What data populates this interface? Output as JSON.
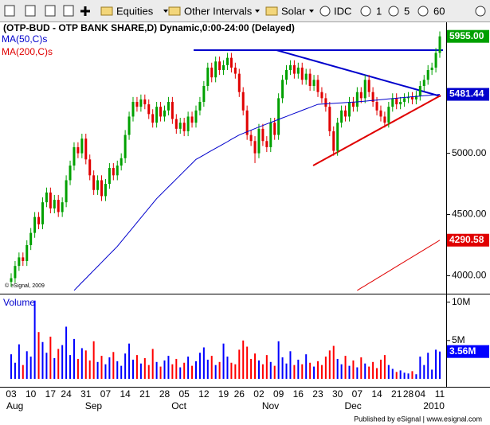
{
  "toolbar": {
    "items": [
      "Equities",
      "Other Intervals",
      "Solar",
      "IDC",
      "1",
      "5",
      "60"
    ]
  },
  "chart_data": [
    {
      "type": "candlestick",
      "title": "(OTP-BUD - OTP BANK SHARE,D) Dynamic,0:00-24:00 (Delayed)",
      "watermark": "© eSignal, 2009",
      "categories": [
        "03",
        null,
        null,
        null,
        null,
        "10",
        null,
        null,
        null,
        null,
        "17",
        null,
        null,
        null,
        "24",
        null,
        null,
        null,
        null,
        "31",
        null,
        null,
        null,
        null,
        "07",
        null,
        null,
        null,
        null,
        "14",
        null,
        null,
        null,
        null,
        "21",
        null,
        null,
        null,
        null,
        "28",
        null,
        null,
        null,
        null,
        "05",
        null,
        null,
        null,
        null,
        "12",
        null,
        null,
        null,
        null,
        "19",
        null,
        null,
        null,
        "26",
        null,
        null,
        null,
        null,
        "02",
        null,
        null,
        null,
        null,
        "09",
        null,
        null,
        null,
        null,
        "16",
        null,
        null,
        null,
        null,
        "23",
        null,
        null,
        null,
        null,
        "30",
        null,
        null,
        null,
        null,
        "07",
        null,
        null,
        null,
        null,
        "14",
        null,
        null,
        null,
        null,
        "21",
        null,
        null,
        "28",
        null,
        null,
        "04",
        null,
        null,
        null,
        null,
        "11"
      ],
      "category_groups": [
        "Aug",
        null,
        null,
        null,
        null,
        null,
        null,
        null,
        null,
        null,
        null,
        null,
        null,
        null,
        null,
        null,
        null,
        null,
        null,
        null,
        "Sep",
        null,
        null,
        null,
        null,
        null,
        null,
        null,
        null,
        null,
        null,
        null,
        null,
        null,
        null,
        null,
        null,
        null,
        null,
        null,
        null,
        null,
        "Oct",
        null,
        null,
        null,
        null,
        null,
        null,
        null,
        null,
        null,
        null,
        null,
        null,
        null,
        null,
        null,
        null,
        null,
        null,
        null,
        null,
        null,
        null,
        "Nov",
        null,
        null,
        null,
        null,
        null,
        null,
        null,
        null,
        null,
        null,
        null,
        null,
        null,
        null,
        null,
        null,
        null,
        null,
        null,
        null,
        "Dec",
        null,
        null,
        null,
        null,
        null,
        null,
        null,
        null,
        null,
        null,
        null,
        null,
        null,
        null,
        null,
        null,
        null,
        null,
        null,
        "2010",
        null,
        null,
        null,
        null,
        null
      ],
      "open": [
        3950,
        3980,
        4080,
        4150,
        4120,
        4250,
        4350,
        4480,
        4420,
        4600,
        4680,
        4550,
        4620,
        4520,
        4600,
        4780,
        4900,
        5050,
        5000,
        5120,
        4950,
        4820,
        4700,
        4780,
        4650,
        4750,
        4880,
        4820,
        4900,
        4960,
        5150,
        5300,
        5420,
        5380,
        5440,
        5400,
        5320,
        5250,
        5380,
        5300,
        5350,
        5420,
        5280,
        5200,
        5250,
        5180,
        5300,
        5250,
        5350,
        5420,
        5550,
        5700,
        5620,
        5750,
        5680,
        5720,
        5780,
        5700,
        5650,
        5500,
        5350,
        5150,
        5100,
        5000,
        5200,
        5100,
        5050,
        5250,
        5150,
        5450,
        5600,
        5680,
        5720,
        5650,
        5700,
        5600,
        5650,
        5550,
        5600,
        5500,
        5450,
        5380,
        5180,
        5020,
        5250,
        5350,
        5300,
        5420,
        5380,
        5500,
        5450,
        5600,
        5500,
        5420,
        5350,
        5300,
        5250,
        5380,
        5450,
        5400,
        5420,
        5450,
        5460,
        5440,
        5470,
        5550,
        5600,
        5680,
        5700,
        5820
      ],
      "high": [
        4020,
        4120,
        4190,
        4190,
        4290,
        4390,
        4520,
        4520,
        4640,
        4720,
        4720,
        4660,
        4660,
        4640,
        4820,
        4940,
        5090,
        5090,
        5160,
        5160,
        4990,
        4860,
        4820,
        4820,
        4790,
        4920,
        4920,
        4940,
        5000,
        5190,
        5340,
        5460,
        5460,
        5480,
        5480,
        5440,
        5360,
        5420,
        5420,
        5390,
        5460,
        5460,
        5320,
        5290,
        5290,
        5340,
        5340,
        5390,
        5460,
        5590,
        5740,
        5740,
        5790,
        5790,
        5760,
        5820,
        5820,
        5740,
        5690,
        5540,
        5390,
        5190,
        5140,
        5240,
        5240,
        5140,
        5290,
        5290,
        5490,
        5640,
        5720,
        5760,
        5760,
        5740,
        5740,
        5690,
        5690,
        5640,
        5640,
        5540,
        5490,
        5420,
        5220,
        5290,
        5390,
        5390,
        5460,
        5460,
        5540,
        5540,
        5640,
        5640,
        5540,
        5460,
        5390,
        5340,
        5420,
        5490,
        5490,
        5460,
        5490,
        5500,
        5500,
        5510,
        5590,
        5640,
        5720,
        5740,
        5860,
        5995
      ],
      "low": [
        3910,
        3940,
        4040,
        4080,
        4080,
        4210,
        4310,
        4380,
        4380,
        4560,
        4510,
        4510,
        4480,
        4480,
        4560,
        4740,
        4860,
        4960,
        4960,
        4910,
        4780,
        4660,
        4660,
        4610,
        4610,
        4710,
        4780,
        4780,
        4860,
        4920,
        5110,
        5260,
        5340,
        5340,
        5360,
        5280,
        5210,
        5210,
        5260,
        5260,
        5310,
        5240,
        5160,
        5160,
        5140,
        5140,
        5210,
        5210,
        5310,
        5380,
        5510,
        5580,
        5580,
        5640,
        5640,
        5680,
        5660,
        5610,
        5460,
        5310,
        5110,
        5060,
        4920,
        4960,
        5060,
        5010,
        5010,
        5110,
        5110,
        5410,
        5560,
        5640,
        5610,
        5610,
        5560,
        5560,
        5510,
        5510,
        5460,
        5410,
        5340,
        5140,
        4980,
        4980,
        5210,
        5260,
        5260,
        5340,
        5340,
        5410,
        5410,
        5460,
        5380,
        5310,
        5260,
        5210,
        5210,
        5340,
        5360,
        5360,
        5380,
        5410,
        5400,
        5400,
        5430,
        5510,
        5560,
        5640,
        5660,
        5780
      ],
      "close": [
        3980,
        4080,
        4150,
        4120,
        4250,
        4350,
        4480,
        4420,
        4600,
        4680,
        4550,
        4620,
        4520,
        4600,
        4780,
        4900,
        5050,
        5000,
        5120,
        4950,
        4820,
        4700,
        4780,
        4650,
        4750,
        4880,
        4820,
        4900,
        4960,
        5150,
        5300,
        5420,
        5380,
        5440,
        5400,
        5320,
        5250,
        5380,
        5300,
        5350,
        5420,
        5280,
        5200,
        5250,
        5180,
        5300,
        5250,
        5350,
        5420,
        5550,
        5700,
        5620,
        5750,
        5680,
        5720,
        5780,
        5700,
        5650,
        5500,
        5350,
        5150,
        5100,
        5000,
        5200,
        5100,
        5050,
        5250,
        5150,
        5450,
        5600,
        5680,
        5720,
        5650,
        5700,
        5600,
        5650,
        5550,
        5600,
        5500,
        5450,
        5380,
        5180,
        5020,
        5250,
        5350,
        5300,
        5420,
        5380,
        5500,
        5450,
        5600,
        5500,
        5420,
        5350,
        5300,
        5250,
        5380,
        5450,
        5400,
        5420,
        5450,
        5460,
        5440,
        5470,
        5550,
        5600,
        5680,
        5700,
        5820,
        5955
      ],
      "close_label": "5955.00",
      "up_color": "#00a000",
      "down_color": "#e00000",
      "series": [
        {
          "name": "MA(50,C)s",
          "color": "#0000cc",
          "last_label": "5481.44",
          "values": [
            null,
            null,
            null,
            null,
            null,
            null,
            null,
            null,
            null,
            null,
            null,
            null,
            null,
            null,
            null,
            null,
            3880,
            3913,
            3946,
            3978,
            4011,
            4044,
            4076,
            4109,
            4142,
            4175,
            4207,
            4240,
            4279,
            4318,
            4357,
            4396,
            4435,
            4474,
            4513,
            4552,
            4591,
            4630,
            4662,
            4694,
            4726,
            4758,
            4790,
            4822,
            4854,
            4886,
            4918,
            4950,
            4968,
            4986,
            5005,
            5023,
            5041,
            5059,
            5077,
            5095,
            5114,
            5132,
            5150,
            5163,
            5176,
            5189,
            5202,
            5215,
            5227,
            5240,
            5252,
            5264,
            5277,
            5289,
            5301,
            5314,
            5326,
            5338,
            5351,
            5363,
            5375,
            5388,
            5400,
            5402,
            5404,
            5406,
            5408,
            5410,
            5412,
            5414,
            5416,
            5418,
            5420,
            5423,
            5426,
            5429,
            5432,
            5435,
            5438,
            5441,
            5444,
            5447,
            5450,
            5453,
            5456,
            5459,
            5462,
            5464,
            5467,
            5470,
            5473,
            5476,
            5478,
            5481.44
          ]
        },
        {
          "name": "MA(200,C)s",
          "color": "#e00000",
          "last_label": "4290.58",
          "values": [
            null,
            null,
            null,
            null,
            null,
            null,
            null,
            null,
            null,
            null,
            null,
            null,
            null,
            null,
            null,
            null,
            null,
            null,
            null,
            null,
            null,
            null,
            null,
            null,
            null,
            null,
            null,
            null,
            null,
            null,
            null,
            null,
            null,
            null,
            null,
            null,
            null,
            null,
            null,
            null,
            null,
            null,
            null,
            null,
            null,
            null,
            null,
            null,
            null,
            null,
            null,
            null,
            null,
            null,
            null,
            null,
            null,
            null,
            null,
            null,
            null,
            null,
            null,
            null,
            null,
            null,
            null,
            null,
            null,
            null,
            null,
            null,
            null,
            null,
            null,
            null,
            null,
            null,
            null,
            null,
            null,
            null,
            null,
            null,
            null,
            null,
            null,
            null,
            3880,
            3900,
            3919,
            3939,
            3958,
            3978,
            3997,
            4017,
            4036,
            4056,
            4076,
            4095,
            4115,
            4134,
            4154,
            4173,
            4193,
            4212,
            4232,
            4251,
            4271,
            4290.58
          ]
        }
      ],
      "ylim": [
        3860,
        6070
      ],
      "yticks": [
        {
          "value": 4000,
          "label": "4000.00"
        },
        {
          "value": 4500,
          "label": "4500.00"
        },
        {
          "value": 5000,
          "label": "5000.00"
        }
      ]
    },
    {
      "type": "bar",
      "title": "Volume",
      "values": [
        3200000,
        2100000,
        4500000,
        1800000,
        3600000,
        2900000,
        10200000,
        6100000,
        4800000,
        3400000,
        5500000,
        2700000,
        3900000,
        4400000,
        6800000,
        3100000,
        5200000,
        2600000,
        4000000,
        3700000,
        2400000,
        4900000,
        2200000,
        3000000,
        1900000,
        2800000,
        3500000,
        2300000,
        1700000,
        3300000,
        4600000,
        2500000,
        3100000,
        2000000,
        2700000,
        1800000,
        3900000,
        2200000,
        1600000,
        2400000,
        3000000,
        1900000,
        2600000,
        1500000,
        2100000,
        2900000,
        1700000,
        2300000,
        3400000,
        4100000,
        2500000,
        3000000,
        1800000,
        2200000,
        4600000,
        2900000,
        2100000,
        1900000,
        3800000,
        5000000,
        4200000,
        2600000,
        3300000,
        2400000,
        1900000,
        3100000,
        2200000,
        1700000,
        4900000,
        2800000,
        2000000,
        3600000,
        1800000,
        2500000,
        1900000,
        3200000,
        2100000,
        1600000,
        2300000,
        1800000,
        2900000,
        3700000,
        4300000,
        2600000,
        1900000,
        3000000,
        1700000,
        2400000,
        1500000,
        2800000,
        2000000,
        1600000,
        2200000,
        1400000,
        2500000,
        3100000,
        1800000,
        1300000,
        900000,
        1100000,
        800000,
        700000,
        1000000,
        600000,
        2900000,
        1800000,
        3400000,
        1200000,
        3800000,
        3560000
      ],
      "last_label": "3.56M",
      "up_color": "#0000ff",
      "down_color": "#ff0000",
      "ylim": [
        0,
        11000000
      ],
      "yticks": [
        {
          "value": 5000000,
          "label": "5M"
        },
        {
          "value": 10000000,
          "label": "10M"
        }
      ]
    }
  ],
  "footer": "Published by eSignal | www.esignal.com"
}
